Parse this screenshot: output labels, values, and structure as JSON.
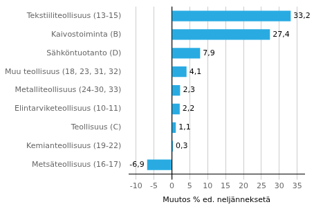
{
  "chart_data": {
    "type": "bar",
    "orientation": "horizontal",
    "categories": [
      "Metsäteollisuus (16-17)",
      "Kemianteollisuus (19-22)",
      "Teollisuus (C)",
      "Elintarviketeollisuus (10-11)",
      "Metalliteollisuus (24-30, 33)",
      "Muu teollisuus (18, 23, 31, 32)",
      "Sähköntuotanto (D)",
      "Kaivostoiminta (B)",
      "Tekstiiliteollisuus (13-15)"
    ],
    "values": [
      -6.9,
      0.3,
      1.1,
      2.2,
      2.3,
      4.1,
      7.9,
      27.4,
      33.2
    ],
    "value_labels": [
      "-6,9",
      "0,3",
      "1,1",
      "2,2",
      "2,3",
      "4,1",
      "7,9",
      "27,4",
      "33,2"
    ],
    "data_labels": true,
    "color": "#29abe2",
    "xlabel": "Muutos % ed. neljänneksetä",
    "xlim": [
      -12,
      37
    ],
    "xticks": [
      -10,
      -5,
      0,
      5,
      10,
      15,
      20,
      25,
      30,
      35
    ],
    "grid": true
  }
}
